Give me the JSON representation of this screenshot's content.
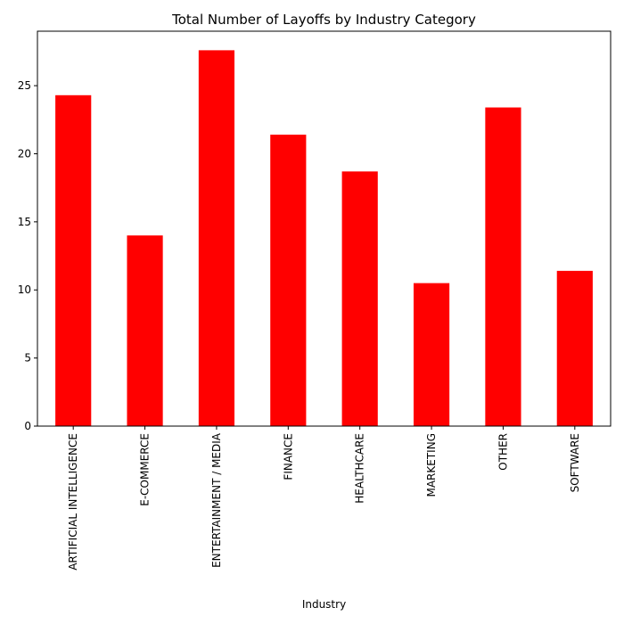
{
  "chart_data": {
    "type": "bar",
    "title": "Total Number of Layoffs by Industry Category",
    "xlabel": "Industry",
    "ylabel": "",
    "categories": [
      "ARTIFICIAL INTELLIGENCE",
      "E-COMMERCE",
      "ENTERTAINMENT / MEDIA",
      "FINANCE",
      "HEALTHCARE",
      "MARKETING",
      "OTHER",
      "SOFTWARE"
    ],
    "values": [
      24.3,
      14.0,
      27.6,
      21.4,
      18.7,
      10.5,
      23.4,
      11.4
    ],
    "ylim": [
      0,
      29
    ],
    "yticks": [
      0,
      5,
      10,
      15,
      20,
      25
    ],
    "bar_color": "#ff0000",
    "grid": false,
    "legend": "none"
  }
}
